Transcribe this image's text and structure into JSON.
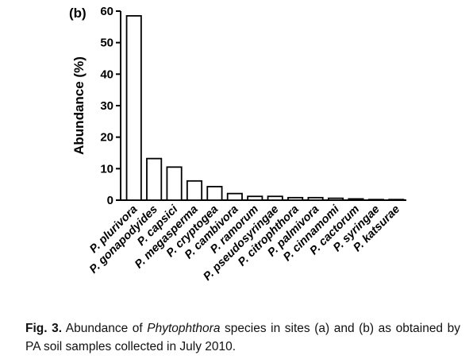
{
  "chart_data": {
    "type": "bar",
    "panel_label": "(b)",
    "title": "",
    "xlabel": "",
    "ylabel": "Abundance (%)",
    "ylim": [
      0,
      60
    ],
    "yticks": [
      0,
      10,
      20,
      30,
      40,
      50,
      60
    ],
    "grid": false,
    "categories": [
      "P. plurivora",
      "P. gonapodyides",
      "P. capsici",
      "P. megasperma",
      "P. cryptogea",
      "P. cambivora",
      "P. ramorum",
      "P. pseudosyringae",
      "P. citrophthora",
      "P. palmivora",
      "P. cinnamomi",
      "P. cactorum",
      "P. syringae",
      "P. katsurae"
    ],
    "values": [
      58.5,
      13.2,
      10.5,
      6.1,
      4.3,
      2.1,
      1.2,
      1.2,
      0.8,
      0.8,
      0.6,
      0.4,
      0.2,
      0.2
    ]
  },
  "caption": {
    "fig": "Fig. 3.",
    "text_before": " Abundance of ",
    "italic": "Phytophthora",
    "text_after": " species in sites (a) and (b) as obtained by PA soil samples collected in July 2010."
  }
}
